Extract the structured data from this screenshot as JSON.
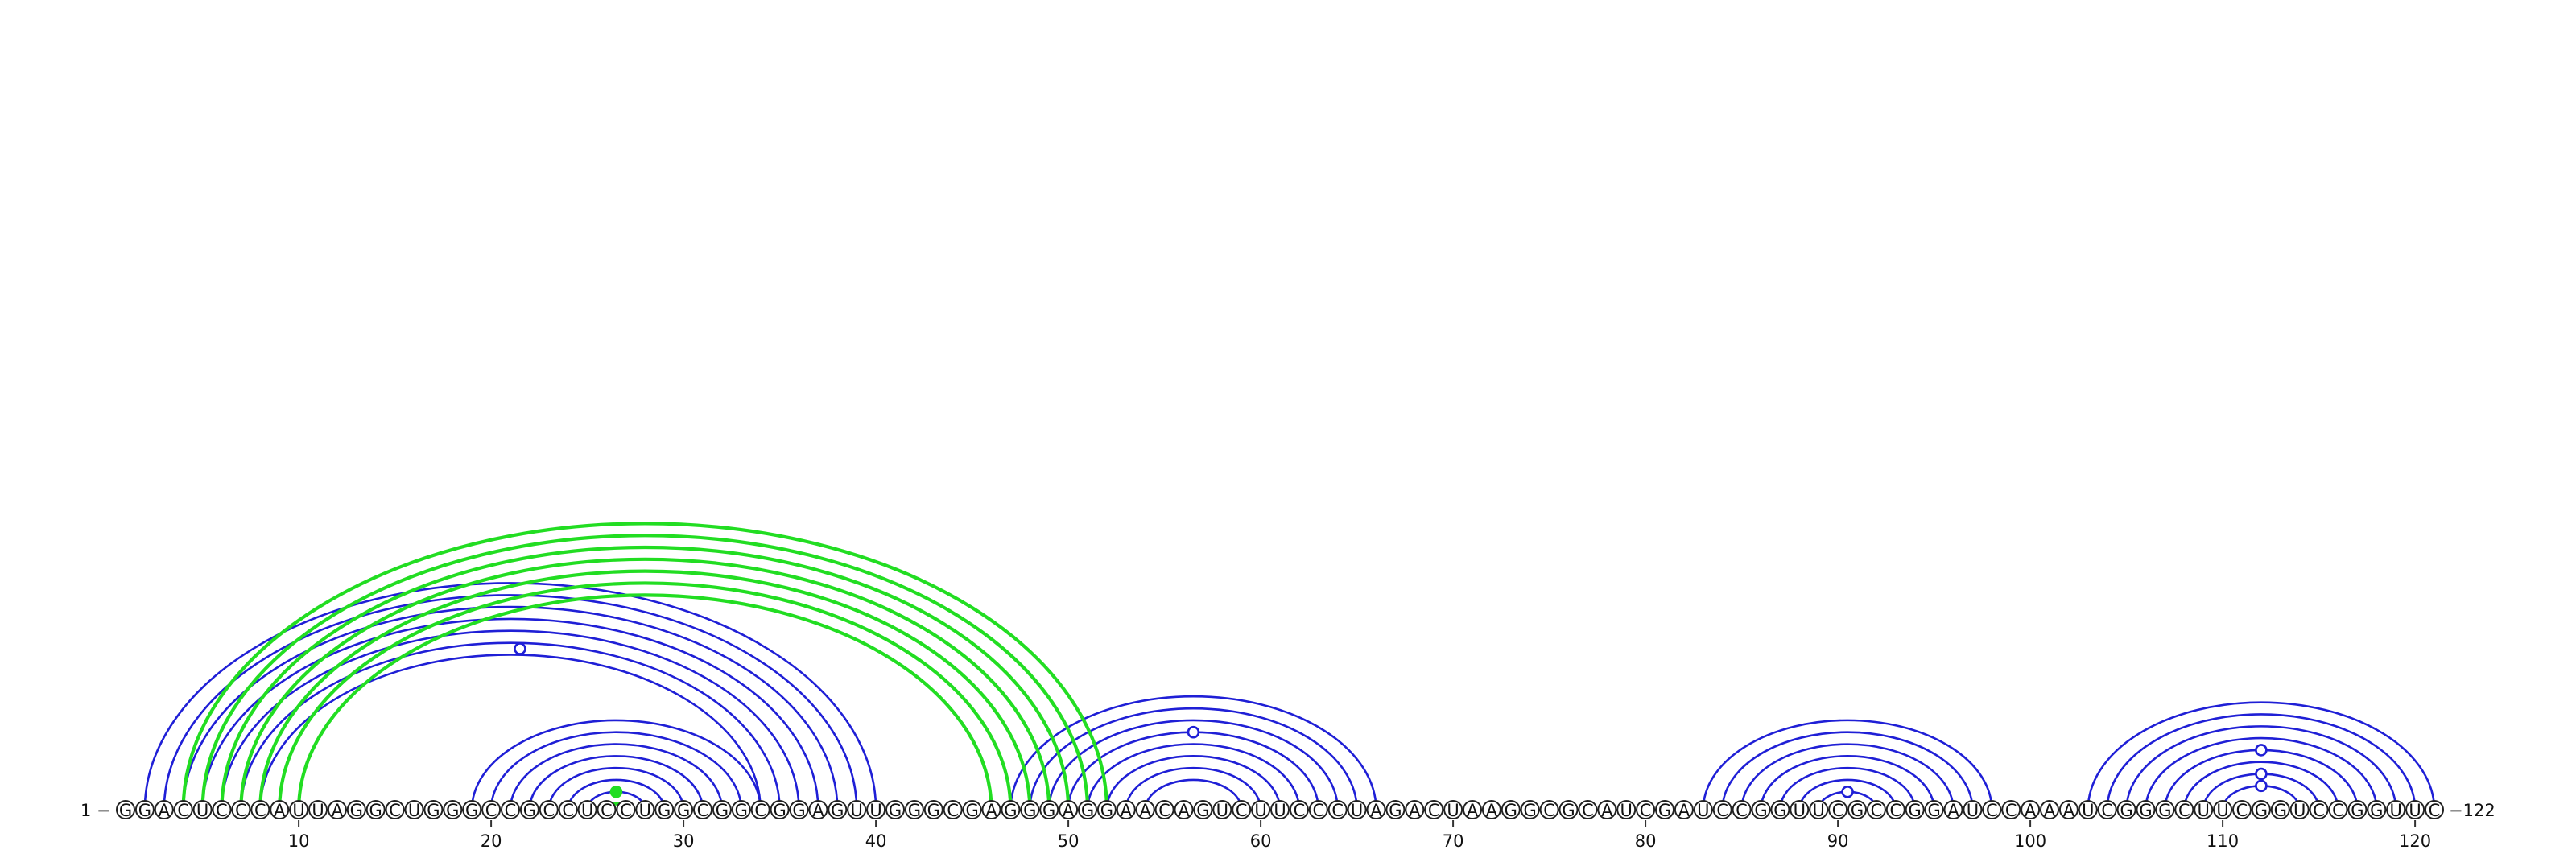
{
  "sequence": "GGACUCCCAUUAGGCUGGGCCGCCUCCUGGCGGCGGAGUUGGGCGAGGGAGGAACAGUCUUCCCUAGACUAAGGCGCAUCGAUCCGGUUCGCCGGAUCCAAAUCGGGCUUCGGUCCGGUUC",
  "start_label": "1",
  "end_label": "122",
  "ticks": [
    10,
    20,
    30,
    40,
    50,
    60,
    70,
    80,
    90,
    100,
    110,
    120
  ],
  "colors": {
    "blue": "#1f1fd6",
    "green": "#22dd22",
    "backbone": "#333333"
  },
  "blue_pairs": [
    [
      2,
      40
    ],
    [
      3,
      39
    ],
    [
      4,
      38
    ],
    [
      5,
      37
    ],
    [
      6,
      36
    ],
    [
      7,
      35
    ],
    [
      8,
      34
    ],
    [
      19,
      34
    ],
    [
      20,
      33
    ],
    [
      21,
      32
    ],
    [
      22,
      31
    ],
    [
      23,
      30
    ],
    [
      24,
      29
    ],
    [
      25,
      28
    ],
    [
      47,
      66
    ],
    [
      48,
      65
    ],
    [
      49,
      64
    ],
    [
      50,
      63
    ],
    [
      51,
      62
    ],
    [
      52,
      61
    ],
    [
      53,
      60
    ],
    [
      54,
      59
    ],
    [
      83,
      98
    ],
    [
      84,
      97
    ],
    [
      85,
      96
    ],
    [
      86,
      95
    ],
    [
      87,
      94
    ],
    [
      88,
      93
    ],
    [
      89,
      92
    ],
    [
      103,
      121
    ],
    [
      104,
      120
    ],
    [
      105,
      119
    ],
    [
      106,
      118
    ],
    [
      107,
      117
    ],
    [
      108,
      116
    ],
    [
      109,
      115
    ],
    [
      110,
      114
    ]
  ],
  "green_pairs": [
    [
      4,
      52
    ],
    [
      5,
      51
    ],
    [
      6,
      50
    ],
    [
      7,
      49
    ],
    [
      8,
      48
    ],
    [
      9,
      47
    ],
    [
      10,
      46
    ],
    [
      26,
      27
    ]
  ],
  "markers": [
    {
      "i": 8,
      "j": 35,
      "color": "blue",
      "filled": false
    },
    {
      "i": 50,
      "j": 63,
      "color": "blue",
      "filled": false
    },
    {
      "i": 89,
      "j": 92,
      "color": "blue",
      "filled": false
    },
    {
      "i": 107,
      "j": 117,
      "color": "blue",
      "filled": false
    },
    {
      "i": 109,
      "j": 115,
      "color": "blue",
      "filled": false
    },
    {
      "i": 110,
      "j": 114,
      "color": "blue",
      "filled": false
    },
    {
      "i": 25,
      "j": 28,
      "color": "green",
      "filled": true
    }
  ]
}
